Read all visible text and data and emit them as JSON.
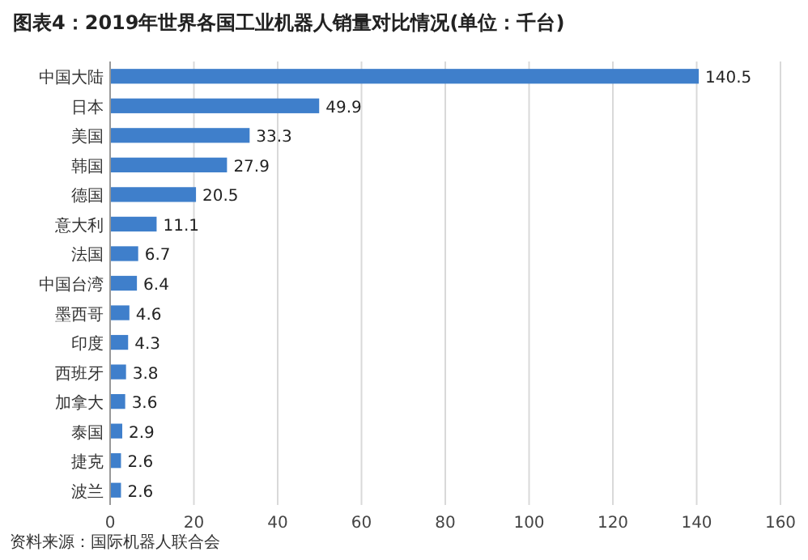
{
  "chart_data": {
    "type": "bar",
    "orientation": "horizontal",
    "title": "图表4：2019年世界各国工业机器人销量对比情况(单位：千台)",
    "categories": [
      "中国大陆",
      "日本",
      "美国",
      "韩国",
      "德国",
      "意大利",
      "法国",
      "中国台湾",
      "墨西哥",
      "印度",
      "西班牙",
      "加拿大",
      "泰国",
      "捷克",
      "波兰"
    ],
    "values": [
      140.5,
      49.9,
      33.3,
      27.9,
      20.5,
      11.1,
      6.7,
      6.4,
      4.6,
      4.3,
      3.8,
      3.6,
      2.9,
      2.6,
      2.6
    ],
    "color": "#3f7fcb",
    "data_labels": true,
    "xlim": [
      0,
      160
    ],
    "xticks": [
      0,
      20,
      40,
      60,
      80,
      100,
      120,
      140,
      160
    ],
    "grid": "x",
    "annotations": [
      "资料来源：国际机器人联合会"
    ]
  }
}
